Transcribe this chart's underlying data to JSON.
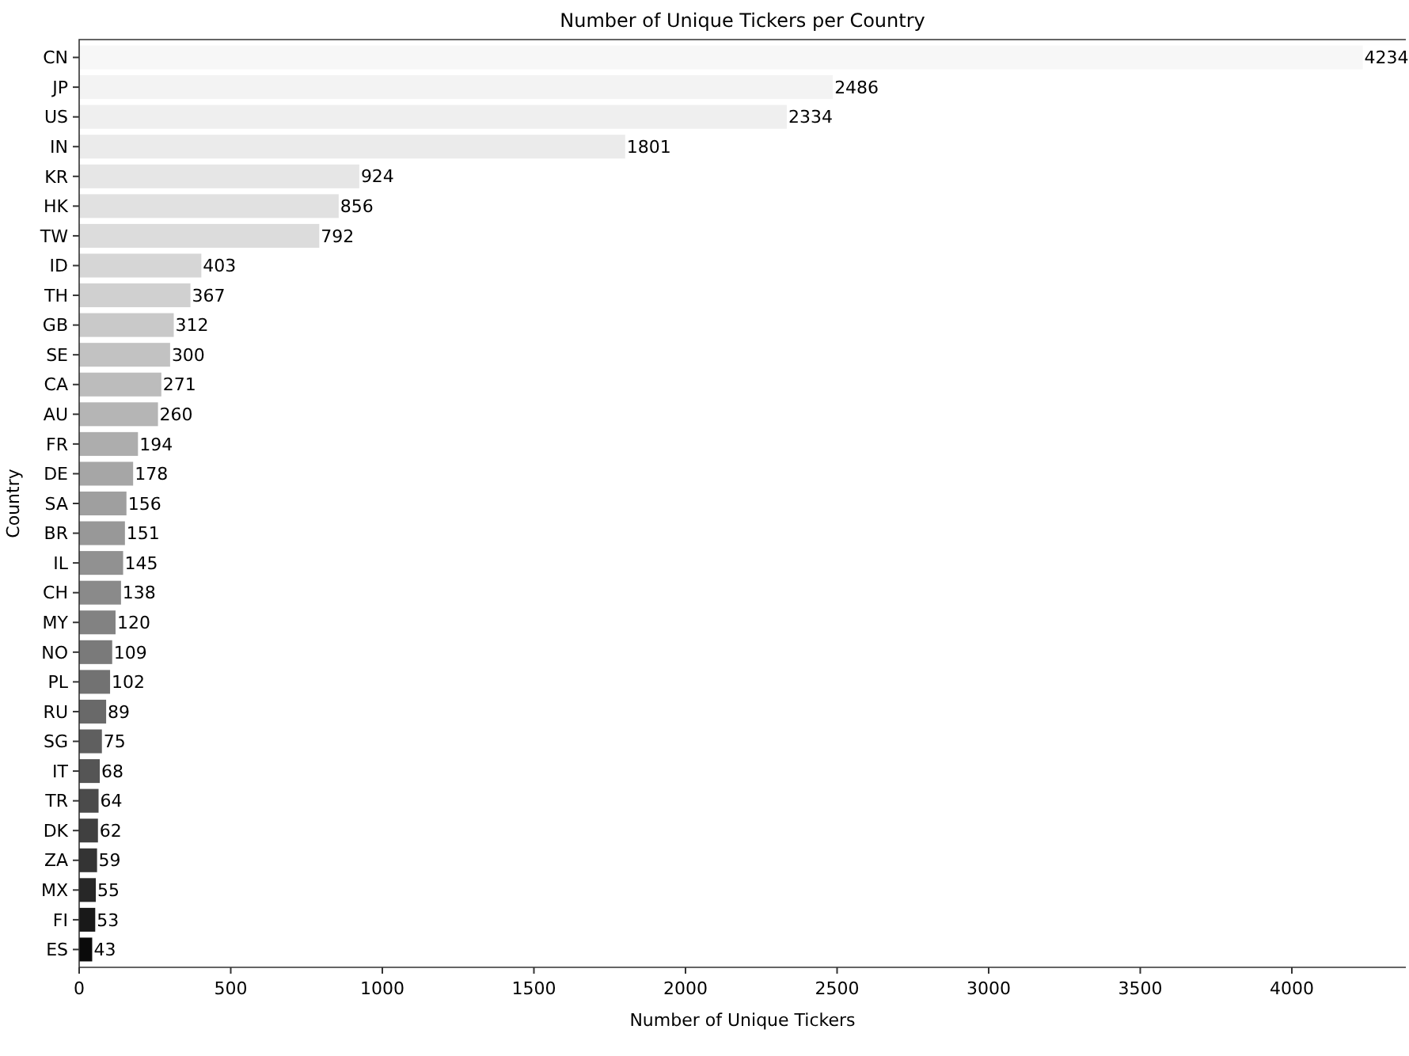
{
  "chart_data": {
    "type": "bar",
    "orientation": "horizontal",
    "title": "Number of Unique Tickers per Country",
    "xlabel": "Number of Unique Tickers",
    "ylabel": "Country",
    "categories": [
      "CN",
      "JP",
      "US",
      "IN",
      "KR",
      "HK",
      "TW",
      "ID",
      "TH",
      "GB",
      "SE",
      "CA",
      "AU",
      "FR",
      "DE",
      "SA",
      "BR",
      "IL",
      "CH",
      "MY",
      "NO",
      "PL",
      "RU",
      "SG",
      "IT",
      "TR",
      "DK",
      "ZA",
      "MX",
      "FI",
      "ES"
    ],
    "values": [
      4234,
      2486,
      2334,
      1801,
      924,
      856,
      792,
      403,
      367,
      312,
      300,
      271,
      260,
      194,
      178,
      156,
      151,
      145,
      138,
      120,
      109,
      102,
      89,
      75,
      68,
      64,
      62,
      59,
      55,
      53,
      43
    ],
    "colors": [
      "#f7f7f7",
      "#f3f3f3",
      "#efefef",
      "#ebebeb",
      "#e6e6e6",
      "#e1e1e1",
      "#dcdcdc",
      "#d6d6d6",
      "#d0d0d0",
      "#c9c9c9",
      "#c2c2c2",
      "#bcbcbc",
      "#b5b5b5",
      "#adadad",
      "#a6a6a6",
      "#9f9f9f",
      "#989898",
      "#919191",
      "#8a8a8a",
      "#828282",
      "#7a7a7a",
      "#727272",
      "#696969",
      "#5f5f5f",
      "#555555",
      "#4b4b4b",
      "#404040",
      "#343434",
      "#272727",
      "#191919",
      "#0a0a0a"
    ],
    "xlim": [
      0,
      4376
    ],
    "xticks": [
      0,
      500,
      1000,
      1500,
      2000,
      2500,
      3000,
      3500,
      4000
    ],
    "data_labels": true,
    "grid": false
  }
}
